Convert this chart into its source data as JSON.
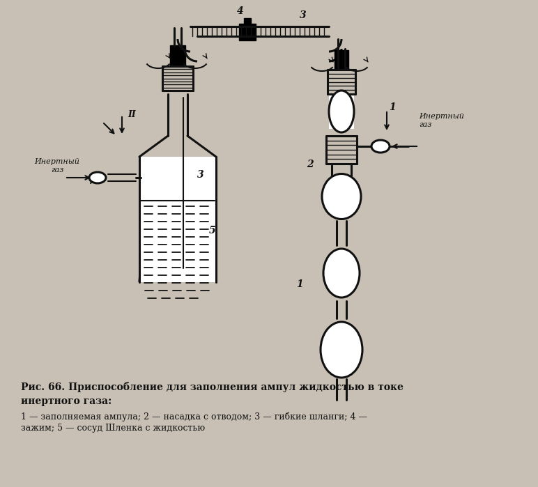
{
  "bg_color": "#c8c0b4",
  "line_color": "#111111",
  "fg_color": "#ffffff",
  "title_line1": "Рис. 66. Приспособление для заполнения ампул жидкостью в токе",
  "title_line2": "инертного газа:",
  "legend1": "1 — заполняемая ампула; 2 — насадка с отводом; 3 — гибкие шланги; 4 —",
  "legend2": "зажим; 5 — сосуд Шленка с жидкостью",
  "inert_left": "Инертный\nгаз",
  "inert_right": "Инертный\nгаз",
  "label_1": "1",
  "label_2": "2",
  "label_3": "3",
  "label_3t": "3",
  "label_4": "4",
  "label_5": "5",
  "label_I": "1",
  "label_II": "II"
}
